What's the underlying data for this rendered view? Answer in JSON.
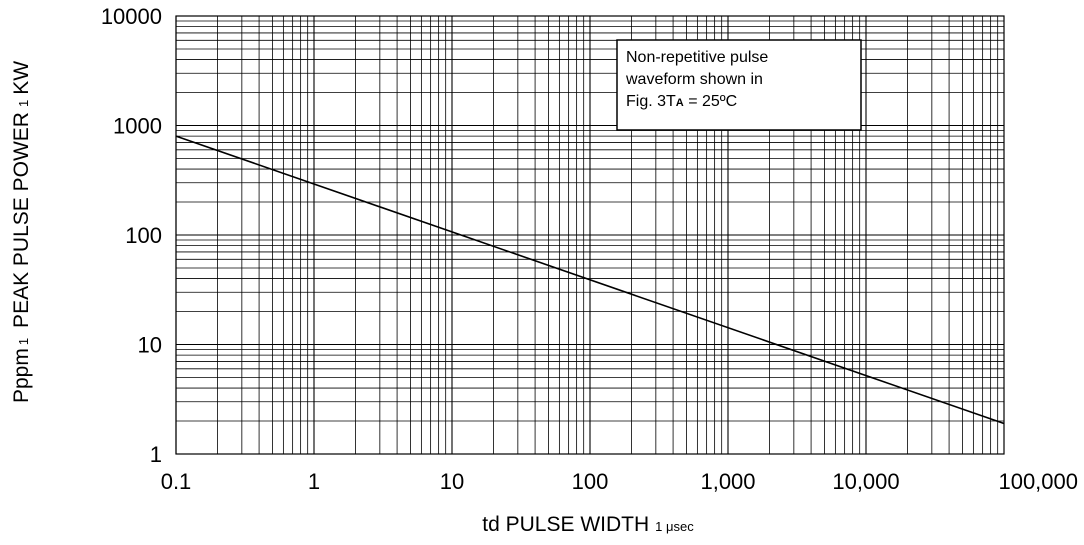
{
  "chart_data": {
    "type": "line",
    "title": "",
    "xlabel_main": "td PULSE WIDTH",
    "xlabel_sub": "1 μsec",
    "ylabel_main": "Pppm",
    "ylabel_sep1": "1",
    "ylabel_mid": "PEAK PULSE POWER",
    "ylabel_sep2": "1",
    "ylabel_unit": "KW",
    "x_scale": "log",
    "y_scale": "log",
    "xlim": [
      0.1,
      100000
    ],
    "ylim": [
      1,
      10000
    ],
    "x_ticks": [
      0.1,
      1,
      10,
      100,
      1000,
      10000,
      100000
    ],
    "x_tick_labels": [
      "0.1",
      "1",
      "10",
      "100",
      "1,000",
      "10,000",
      "100,000"
    ],
    "y_ticks": [
      1,
      10,
      100,
      1000,
      10000
    ],
    "y_tick_labels": [
      "1",
      "10",
      "100",
      "1000",
      "10000"
    ],
    "grid": true,
    "series": [
      {
        "x": [
          0.1,
          100000
        ],
        "y": [
          800,
          1.9
        ]
      }
    ],
    "annotation": {
      "line1": "Non-repetitive pulse",
      "line2": "waveform shown in",
      "line3_main": "Fig. 3T",
      "line3_sub": "A",
      "line3_tail": " = 25ºC",
      "placement": "top-right"
    }
  }
}
